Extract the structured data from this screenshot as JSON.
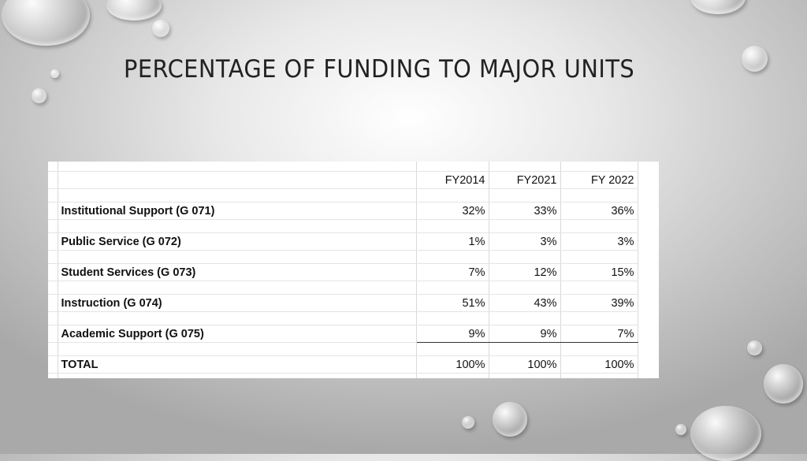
{
  "title": "PERCENTAGE OF FUNDING TO MAJOR UNITS",
  "table": {
    "headers": [
      "FY2014",
      "FY2021",
      "FY 2022"
    ],
    "rows": [
      {
        "label": "Institutional Support (G 071)",
        "values": [
          "32%",
          "33%",
          "36%"
        ]
      },
      {
        "label": "Public Service (G 072)",
        "values": [
          "1%",
          "3%",
          "3%"
        ]
      },
      {
        "label": "Student Services (G 073)",
        "values": [
          "7%",
          "12%",
          "15%"
        ]
      },
      {
        "label": "Instruction (G 074)",
        "values": [
          "51%",
          "43%",
          "39%"
        ]
      },
      {
        "label": "Academic Support (G 075)",
        "values": [
          "9%",
          "9%",
          "7%"
        ]
      },
      {
        "label": "TOTAL",
        "values": [
          "100%",
          "100%",
          "100%"
        ]
      }
    ]
  }
}
